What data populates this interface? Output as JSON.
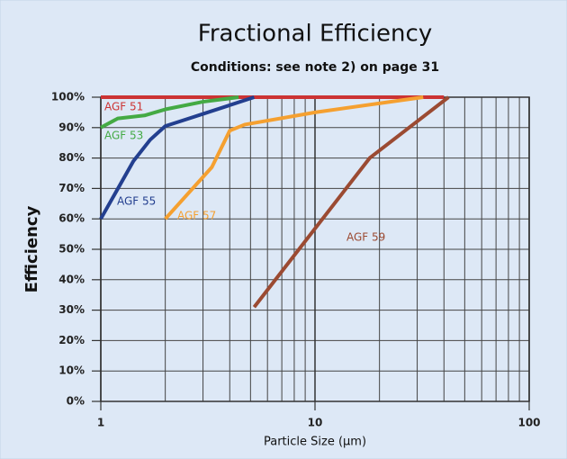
{
  "chart_data": {
    "type": "line",
    "title": "Fractional Efficiency",
    "subtitle": "Conditions: see note 2) on page 31",
    "xlabel": "Particle Size (µm)",
    "ylabel": "Efficiency",
    "xscale": "log",
    "xlim": [
      1,
      100
    ],
    "xticks": [
      1,
      10,
      100
    ],
    "ylim": [
      0,
      100
    ],
    "yticks": [
      {
        "value": 0,
        "label": "0%"
      },
      {
        "value": 10,
        "label": "10%"
      },
      {
        "value": 20,
        "label": "20%"
      },
      {
        "value": 30,
        "label": "30%"
      },
      {
        "value": 40,
        "label": "40%"
      },
      {
        "value": 50,
        "label": "50%"
      },
      {
        "value": 60,
        "label": "60%"
      },
      {
        "value": 70,
        "label": "70%"
      },
      {
        "value": 80,
        "label": "80%"
      },
      {
        "value": 90,
        "label": "90%"
      },
      {
        "value": 100,
        "label": "100%"
      }
    ],
    "grid": true,
    "series": [
      {
        "name": "AGF 51",
        "color": "#cc3333",
        "x": [
          1,
          40
        ],
        "values": [
          100,
          100
        ]
      },
      {
        "name": "AGF 53",
        "color": "#44aa44",
        "x": [
          1,
          1.2,
          1.6,
          2,
          3,
          4.4
        ],
        "values": [
          90,
          93,
          94,
          96,
          98.5,
          100
        ]
      },
      {
        "name": "AGF 55",
        "color": "#233f8f",
        "x": [
          1,
          1.42,
          1.7,
          2,
          3,
          5.2
        ],
        "values": [
          60,
          79,
          86,
          90.5,
          94.5,
          100
        ]
      },
      {
        "name": "AGF 57",
        "color": "#f5a030",
        "x": [
          2,
          3.3,
          4,
          4.7,
          10,
          32
        ],
        "values": [
          60,
          77,
          89,
          91,
          95,
          100
        ]
      },
      {
        "name": "AGF 59",
        "color": "#9b4a32",
        "x": [
          5.2,
          18,
          42
        ],
        "values": [
          31,
          80,
          100
        ]
      }
    ]
  }
}
